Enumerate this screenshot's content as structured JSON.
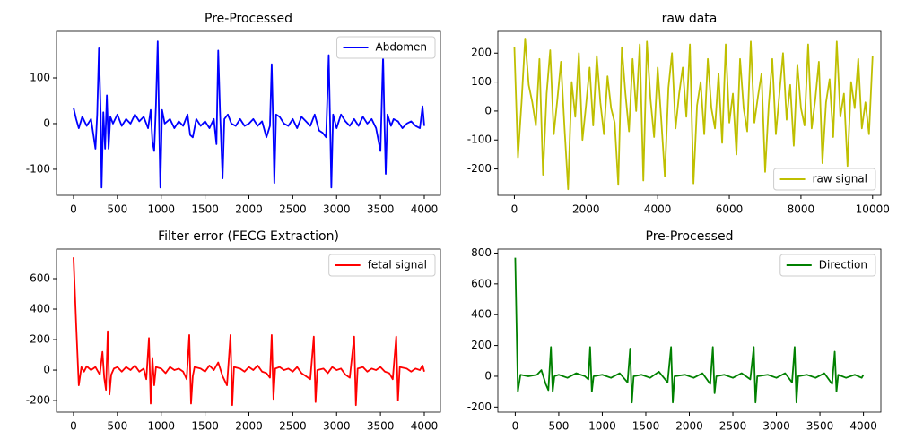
{
  "chart_data": [
    {
      "type": "line",
      "title": "Pre-Processed",
      "legend": "upper right",
      "x": [
        0,
        30,
        60,
        100,
        150,
        200,
        250,
        270,
        290,
        310,
        320,
        340,
        360,
        380,
        400,
        420,
        450,
        500,
        550,
        600,
        650,
        700,
        750,
        800,
        850,
        880,
        900,
        920,
        940,
        960,
        975,
        990,
        1010,
        1040,
        1100,
        1150,
        1200,
        1250,
        1300,
        1330,
        1360,
        1400,
        1450,
        1500,
        1550,
        1600,
        1630,
        1650,
        1670,
        1700,
        1720,
        1760,
        1800,
        1850,
        1900,
        1950,
        2000,
        2050,
        2100,
        2150,
        2200,
        2240,
        2260,
        2275,
        2290,
        2310,
        2350,
        2400,
        2450,
        2500,
        2550,
        2600,
        2650,
        2700,
        2750,
        2800,
        2840,
        2880,
        2910,
        2925,
        2940,
        2960,
        3000,
        3050,
        3100,
        3150,
        3200,
        3250,
        3300,
        3350,
        3400,
        3450,
        3500,
        3530,
        3545,
        3560,
        3580,
        3620,
        3650,
        3700,
        3750,
        3800,
        3850,
        3900,
        3950,
        3980,
        4000
      ],
      "series": [
        {
          "name": "Abdomen",
          "color": "#0000ff",
          "values": [
            35,
            10,
            -10,
            15,
            -5,
            10,
            -55,
            20,
            165,
            20,
            -140,
            25,
            -55,
            62,
            -55,
            15,
            0,
            20,
            -5,
            10,
            0,
            20,
            5,
            15,
            -10,
            30,
            -40,
            -60,
            40,
            180,
            10,
            -140,
            30,
            0,
            10,
            -10,
            5,
            -5,
            20,
            -25,
            -30,
            10,
            -5,
            5,
            -10,
            10,
            -45,
            160,
            30,
            -120,
            10,
            20,
            0,
            -5,
            10,
            -5,
            0,
            10,
            -5,
            5,
            -30,
            -5,
            130,
            10,
            -130,
            20,
            15,
            0,
            -5,
            10,
            -10,
            15,
            5,
            -5,
            20,
            -15,
            -20,
            -30,
            150,
            10,
            -140,
            20,
            -10,
            20,
            5,
            -5,
            10,
            -5,
            15,
            0,
            10,
            -10,
            -60,
            150,
            10,
            -110,
            20,
            -5,
            10,
            5,
            -10,
            0,
            5,
            -5,
            -10,
            38,
            -5
          ]
        }
      ],
      "xlim": [
        -194,
        4184
      ],
      "ylim": [
        -157,
        202
      ],
      "xticks": [
        0,
        500,
        1000,
        1500,
        2000,
        2500,
        3000,
        3500,
        4000
      ],
      "yticks": [
        -100,
        0,
        100
      ]
    },
    {
      "type": "line",
      "title": "raw data",
      "legend": "lower right",
      "x": [
        0,
        100,
        200,
        300,
        400,
        500,
        600,
        700,
        800,
        900,
        1000,
        1100,
        1200,
        1300,
        1400,
        1500,
        1600,
        1700,
        1800,
        1900,
        2000,
        2100,
        2200,
        2300,
        2400,
        2500,
        2600,
        2700,
        2800,
        2900,
        3000,
        3100,
        3200,
        3300,
        3400,
        3500,
        3600,
        3700,
        3800,
        3900,
        4000,
        4100,
        4200,
        4300,
        4400,
        4500,
        4600,
        4700,
        4800,
        4900,
        5000,
        5100,
        5200,
        5300,
        5400,
        5500,
        5600,
        5700,
        5800,
        5900,
        6000,
        6100,
        6200,
        6300,
        6400,
        6500,
        6600,
        6700,
        6800,
        6900,
        7000,
        7100,
        7200,
        7300,
        7400,
        7500,
        7600,
        7700,
        7800,
        7900,
        8000,
        8100,
        8200,
        8300,
        8400,
        8500,
        8600,
        8700,
        8800,
        8900,
        9000,
        9100,
        9200,
        9300,
        9400,
        9500,
        9600,
        9700,
        9800,
        9900,
        10000
      ],
      "series": [
        {
          "name": "raw signal",
          "color": "#bfbf00",
          "values": [
            220,
            -160,
            30,
            250,
            90,
            30,
            -50,
            180,
            -220,
            60,
            210,
            -80,
            40,
            170,
            -60,
            -270,
            100,
            -20,
            200,
            -100,
            20,
            150,
            -50,
            190,
            30,
            -80,
            120,
            10,
            -40,
            -255,
            220,
            60,
            -70,
            180,
            0,
            230,
            -240,
            240,
            40,
            -90,
            150,
            -30,
            -225,
            80,
            200,
            -60,
            60,
            150,
            -20,
            230,
            -250,
            20,
            100,
            -80,
            180,
            10,
            -60,
            130,
            -110,
            230,
            -40,
            60,
            -150,
            180,
            10,
            -70,
            240,
            -40,
            50,
            130,
            -210,
            20,
            180,
            -80,
            60,
            200,
            -30,
            90,
            -120,
            160,
            10,
            -50,
            230,
            -60,
            40,
            170,
            -180,
            30,
            110,
            -90,
            240,
            -20,
            60,
            -190,
            100,
            10,
            180,
            -60,
            30,
            -80,
            190
          ]
        }
      ],
      "xlim": [
        -462,
        10231
      ],
      "ylim": [
        -291,
        275
      ],
      "xticks": [
        0,
        2000,
        4000,
        6000,
        8000,
        10000
      ],
      "yticks": [
        -200,
        -100,
        0,
        100,
        200
      ]
    },
    {
      "type": "line",
      "title": "Filter error (FECG Extraction)",
      "legend": "upper right",
      "x": [
        0,
        30,
        60,
        90,
        120,
        150,
        200,
        250,
        300,
        330,
        350,
        370,
        390,
        410,
        430,
        460,
        500,
        550,
        600,
        650,
        700,
        750,
        800,
        830,
        860,
        880,
        900,
        920,
        940,
        1000,
        1050,
        1100,
        1150,
        1200,
        1250,
        1290,
        1320,
        1340,
        1360,
        1380,
        1450,
        1500,
        1550,
        1600,
        1650,
        1700,
        1750,
        1790,
        1810,
        1830,
        1900,
        1950,
        2000,
        2050,
        2100,
        2150,
        2200,
        2240,
        2260,
        2280,
        2300,
        2350,
        2400,
        2450,
        2500,
        2550,
        2600,
        2650,
        2700,
        2740,
        2760,
        2780,
        2850,
        2900,
        2950,
        3000,
        3050,
        3100,
        3150,
        3200,
        3220,
        3240,
        3300,
        3350,
        3400,
        3450,
        3500,
        3550,
        3600,
        3640,
        3680,
        3700,
        3720,
        3800,
        3850,
        3900,
        3950,
        3980,
        4000
      ],
      "series": [
        {
          "name": "fetal signal",
          "color": "#ff0000",
          "values": [
            740,
            300,
            -100,
            20,
            -10,
            25,
            0,
            20,
            -30,
            120,
            -50,
            -130,
            255,
            -160,
            -30,
            10,
            20,
            -10,
            20,
            0,
            30,
            -10,
            10,
            -60,
            210,
            -220,
            80,
            -100,
            20,
            10,
            -20,
            20,
            0,
            10,
            -10,
            -60,
            230,
            -220,
            -40,
            20,
            10,
            -10,
            30,
            0,
            50,
            -40,
            -100,
            230,
            -230,
            20,
            10,
            -10,
            20,
            0,
            30,
            -10,
            -20,
            -50,
            230,
            -190,
            10,
            20,
            0,
            10,
            -10,
            20,
            -20,
            -40,
            -60,
            220,
            -210,
            0,
            10,
            -20,
            20,
            0,
            10,
            -30,
            -50,
            220,
            -230,
            10,
            20,
            -10,
            10,
            0,
            20,
            -10,
            -20,
            -60,
            220,
            -200,
            20,
            10,
            -10,
            10,
            0,
            30,
            -10
          ]
        }
      ],
      "xlim": [
        -194,
        4184
      ],
      "ylim": [
        -276,
        794
      ],
      "xticks": [
        0,
        500,
        1000,
        1500,
        2000,
        2500,
        3000,
        3500,
        4000
      ],
      "yticks": [
        -200,
        0,
        200,
        400,
        600
      ]
    },
    {
      "type": "line",
      "title": "Pre-Processed",
      "legend": "upper right",
      "x": [
        0,
        30,
        60,
        150,
        250,
        300,
        350,
        380,
        410,
        430,
        450,
        500,
        600,
        700,
        800,
        840,
        860,
        880,
        900,
        1000,
        1100,
        1200,
        1290,
        1320,
        1340,
        1360,
        1450,
        1550,
        1650,
        1750,
        1790,
        1810,
        1830,
        1950,
        2050,
        2150,
        2240,
        2270,
        2290,
        2310,
        2400,
        2500,
        2600,
        2700,
        2740,
        2760,
        2780,
        2900,
        3000,
        3100,
        3180,
        3210,
        3230,
        3250,
        3350,
        3450,
        3550,
        3640,
        3670,
        3690,
        3710,
        3800,
        3900,
        3980,
        4000
      ],
      "series": [
        {
          "name": "Direction",
          "color": "#008000",
          "values": [
            770,
            -100,
            10,
            0,
            10,
            40,
            -50,
            -90,
            190,
            -100,
            0,
            10,
            -10,
            20,
            0,
            -20,
            190,
            -100,
            0,
            10,
            -10,
            20,
            -40,
            180,
            -170,
            0,
            10,
            -10,
            30,
            -40,
            190,
            -170,
            0,
            10,
            -10,
            20,
            -50,
            190,
            -110,
            0,
            10,
            -10,
            20,
            -20,
            190,
            -170,
            0,
            10,
            -10,
            20,
            -40,
            190,
            -170,
            0,
            10,
            -10,
            20,
            -50,
            160,
            -100,
            10,
            -10,
            10,
            -10,
            10
          ]
        }
      ],
      "xlim": [
        -200,
        4200
      ],
      "ylim": [
        -233,
        826
      ],
      "xticks": [
        0,
        500,
        1000,
        1500,
        2000,
        2500,
        3000,
        3500,
        4000
      ],
      "yticks": [
        -200,
        0,
        200,
        400,
        600,
        800
      ]
    }
  ]
}
